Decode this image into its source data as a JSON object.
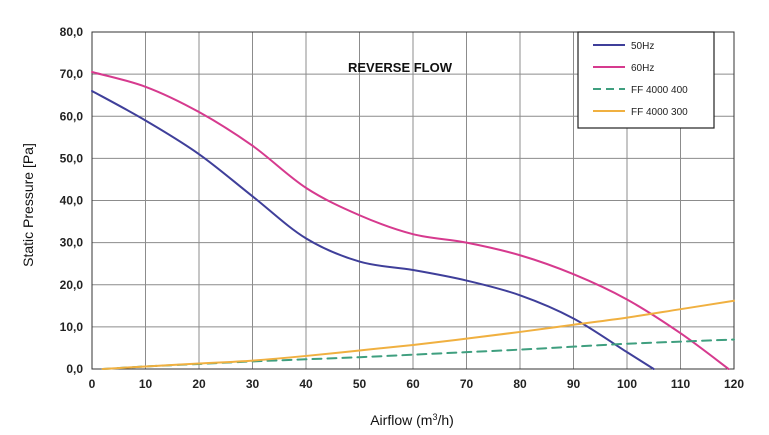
{
  "chart_data": {
    "type": "line",
    "title": "REVERSE FLOW",
    "xlabel": "Airflow (m",
    "xlabel_sup": "3",
    "xlabel_suffix": "/h)",
    "ylabel": "Static Pressure [Pa]",
    "xlim": [
      0,
      120
    ],
    "ylim": [
      0,
      80
    ],
    "x_ticks": [
      0,
      10,
      20,
      30,
      40,
      50,
      60,
      70,
      80,
      90,
      100,
      110,
      120
    ],
    "x_tick_labels": [
      "0",
      "10",
      "20",
      "30",
      "40",
      "50",
      "60",
      "70",
      "80",
      "90",
      "100",
      "110",
      "120"
    ],
    "y_ticks": [
      0,
      10,
      20,
      30,
      40,
      50,
      60,
      70,
      80
    ],
    "y_tick_labels": [
      "0,0",
      "10,0",
      "20,0",
      "30,0",
      "40,0",
      "50,0",
      "60,0",
      "70,0",
      "80,0"
    ],
    "grid": true,
    "legend_position": "top-right",
    "series": [
      {
        "name": "50Hz",
        "color": "#3f3f9a",
        "dash": "solid",
        "points": [
          [
            0,
            66
          ],
          [
            10,
            59
          ],
          [
            20,
            51
          ],
          [
            30,
            41
          ],
          [
            40,
            31
          ],
          [
            50,
            25.5
          ],
          [
            60,
            23.5
          ],
          [
            70,
            21
          ],
          [
            80,
            17.5
          ],
          [
            90,
            12
          ],
          [
            100,
            4
          ],
          [
            105,
            0
          ]
        ]
      },
      {
        "name": "60Hz",
        "color": "#d63a8e",
        "dash": "solid",
        "points": [
          [
            0,
            70.5
          ],
          [
            10,
            67
          ],
          [
            20,
            61
          ],
          [
            30,
            53
          ],
          [
            40,
            43
          ],
          [
            50,
            36.5
          ],
          [
            60,
            32
          ],
          [
            70,
            30
          ],
          [
            80,
            27
          ],
          [
            90,
            22.5
          ],
          [
            100,
            16.5
          ],
          [
            110,
            8.5
          ],
          [
            119,
            0
          ]
        ]
      },
      {
        "name": "FF 4000 400",
        "color": "#3f9f7f",
        "dash": "dashed",
        "points": [
          [
            2,
            0
          ],
          [
            10,
            0.6
          ],
          [
            20,
            1.2
          ],
          [
            30,
            1.8
          ],
          [
            40,
            2.3
          ],
          [
            50,
            2.8
          ],
          [
            60,
            3.4
          ],
          [
            70,
            4
          ],
          [
            80,
            4.6
          ],
          [
            90,
            5.3
          ],
          [
            100,
            6
          ],
          [
            110,
            6.5
          ],
          [
            120,
            7
          ]
        ]
      },
      {
        "name": "FF 4000 300",
        "color": "#f0b040",
        "dash": "solid",
        "points": [
          [
            2,
            0
          ],
          [
            10,
            0.6
          ],
          [
            20,
            1.3
          ],
          [
            30,
            2
          ],
          [
            40,
            3.1
          ],
          [
            50,
            4.4
          ],
          [
            60,
            5.7
          ],
          [
            70,
            7.2
          ],
          [
            80,
            8.8
          ],
          [
            90,
            10.5
          ],
          [
            100,
            12.2
          ],
          [
            110,
            14.2
          ],
          [
            120,
            16.2
          ]
        ]
      }
    ]
  }
}
